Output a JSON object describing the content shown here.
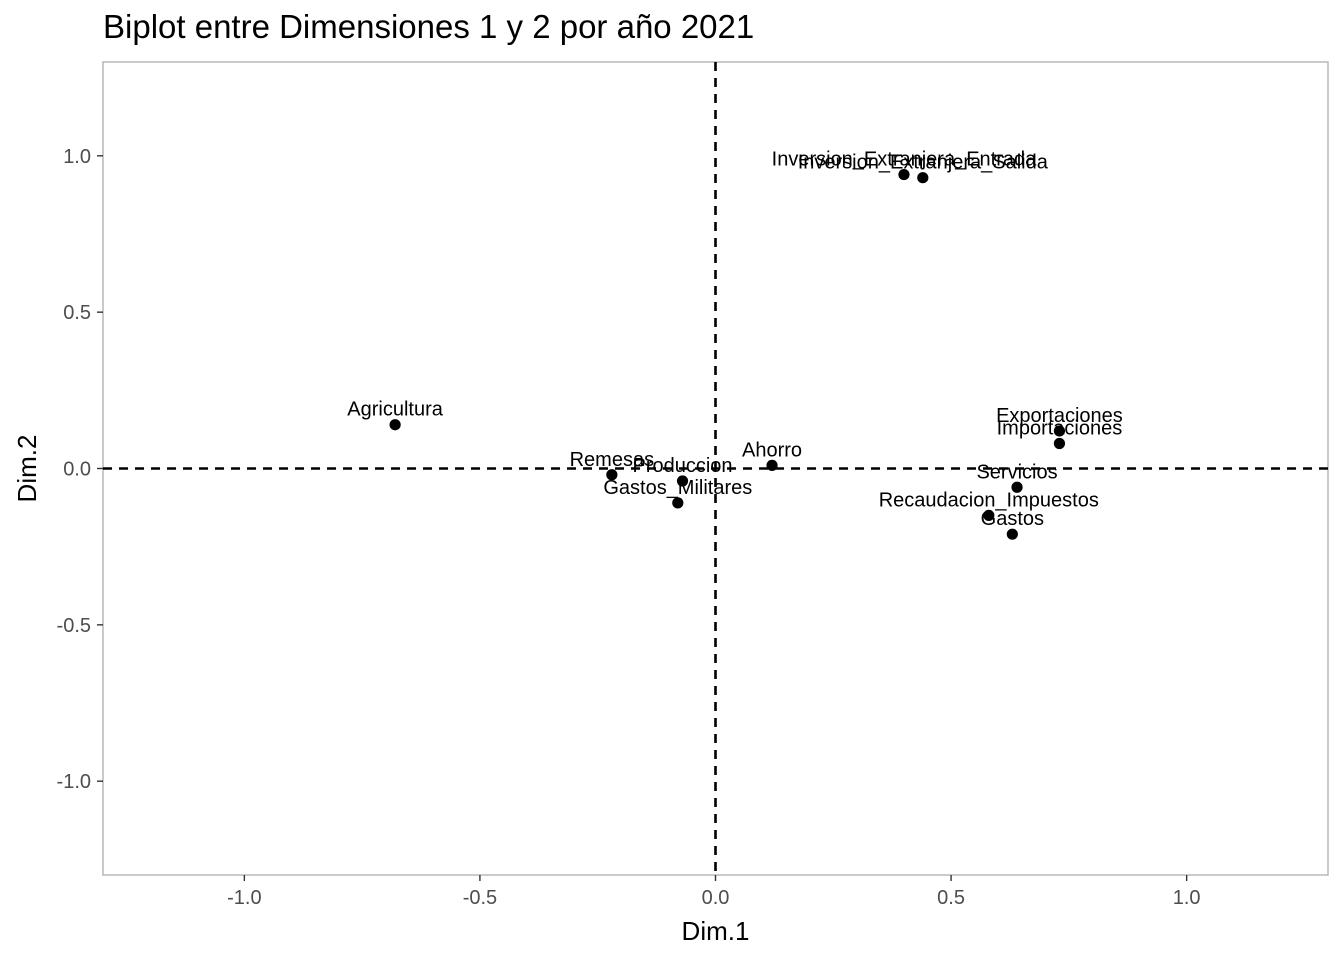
{
  "chart_data": {
    "type": "scatter",
    "title": "Biplot entre Dimensiones 1 y 2 por año 2021",
    "xlabel": "Dim.1",
    "ylabel": "Dim.2",
    "xlim": [
      -1.3,
      1.3
    ],
    "ylim": [
      -1.3,
      1.3
    ],
    "x_ticks": [
      -1.0,
      -0.5,
      0.0,
      0.5,
      1.0
    ],
    "y_ticks": [
      -1.0,
      -0.5,
      0.0,
      0.5,
      1.0
    ],
    "x_tick_labels": [
      "-1.0",
      "-0.5",
      "0.0",
      "0.5",
      "1.0"
    ],
    "y_tick_labels": [
      "-1.0",
      "-0.5",
      "0.0",
      "0.5",
      "1.0"
    ],
    "reference_lines": {
      "x": 0,
      "y": 0,
      "style": "dashed"
    },
    "grid": false,
    "legend": "none",
    "colors": {
      "point": "#000000",
      "panel_border": "#b3b3b3",
      "reference_line": "#000000"
    },
    "points": [
      {
        "label": "Inversion_Extranjera_Entrada",
        "x": 0.4,
        "y": 0.94
      },
      {
        "label": "Inversion_Extranjera_Salida",
        "x": 0.44,
        "y": 0.93
      },
      {
        "label": "Agricultura",
        "x": -0.68,
        "y": 0.14
      },
      {
        "label": "Exportaciones",
        "x": 0.73,
        "y": 0.12
      },
      {
        "label": "Importaciones",
        "x": 0.73,
        "y": 0.08
      },
      {
        "label": "Ahorro",
        "x": 0.12,
        "y": 0.01
      },
      {
        "label": "Remesas",
        "x": -0.22,
        "y": -0.02
      },
      {
        "label": "Produccion",
        "x": -0.07,
        "y": -0.04
      },
      {
        "label": "Servicios",
        "x": 0.64,
        "y": -0.06
      },
      {
        "label": "Gastos_Militares",
        "x": -0.08,
        "y": -0.11
      },
      {
        "label": "Recaudacion_Impuestos",
        "x": 0.58,
        "y": -0.15
      },
      {
        "label": "Gastos",
        "x": 0.63,
        "y": -0.21
      }
    ]
  }
}
